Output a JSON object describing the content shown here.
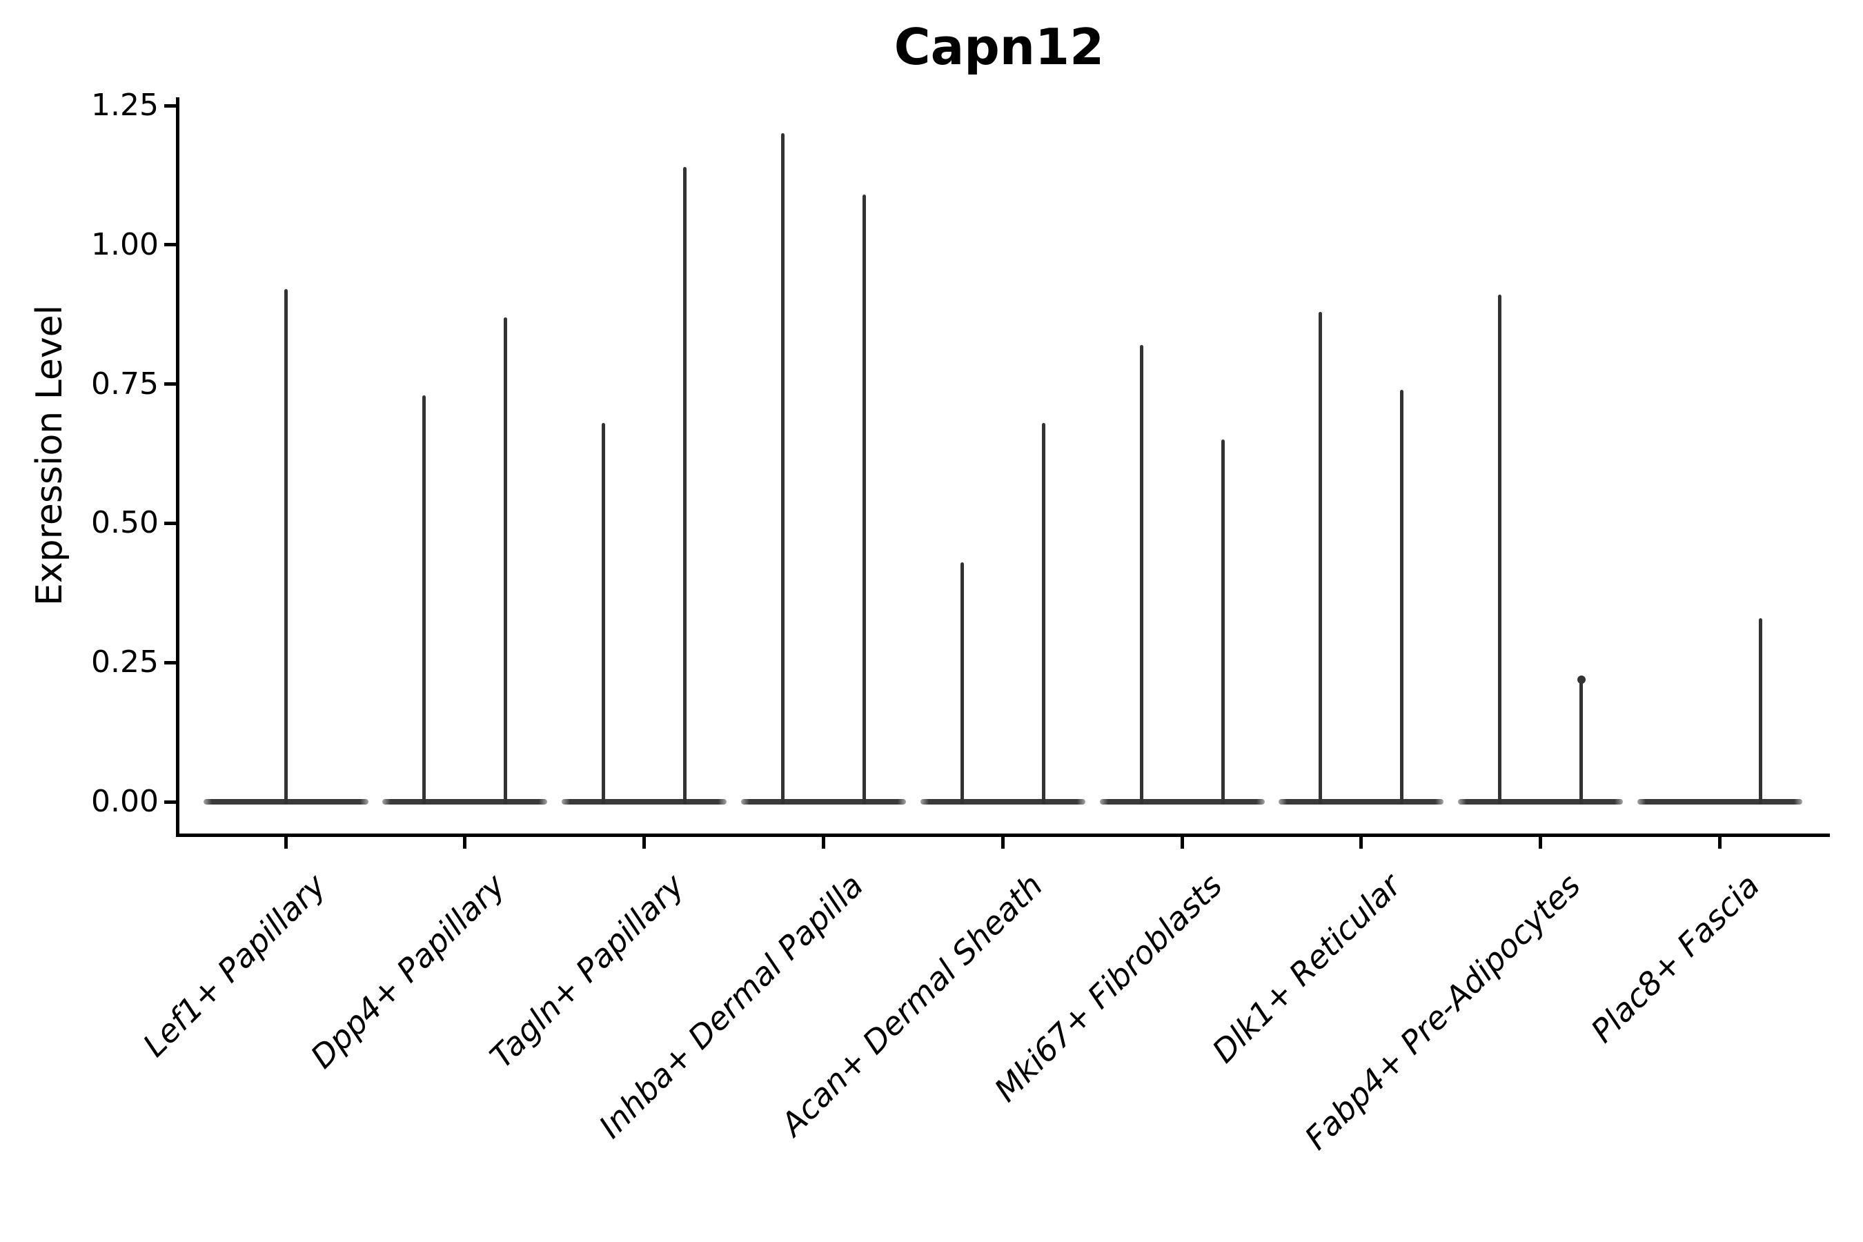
{
  "chart_data": {
    "type": "violin",
    "title": "Capn12",
    "xlabel": "",
    "ylabel": "Expression Level",
    "ylim": [
      0,
      1.25
    ],
    "yticks": [
      "0.00",
      "0.25",
      "0.50",
      "0.75",
      "1.00",
      "1.25"
    ],
    "grid": false,
    "legend": "none",
    "description": "Violin plot of gene expression; distributions are concentrated at zero (flat bodies) with thin spikes reaching the maximum expression per group; most cell types contain two side-by-side violins",
    "colors": {
      "violin": "#333333",
      "axis": "#000000",
      "text": "#000000"
    },
    "categories": [
      {
        "label": "Lef1+ Papillary",
        "violins": [
          {
            "pos": "center",
            "max": 0.92
          }
        ]
      },
      {
        "label": "Dpp4+ Papillary",
        "violins": [
          {
            "pos": "left",
            "max": 0.73
          },
          {
            "pos": "right",
            "max": 0.87
          }
        ]
      },
      {
        "label": "Tagln+ Papillary",
        "violins": [
          {
            "pos": "left",
            "max": 0.68
          },
          {
            "pos": "right",
            "max": 1.14
          }
        ]
      },
      {
        "label": "Inhba+ Dermal Papilla",
        "violins": [
          {
            "pos": "left",
            "max": 1.2
          },
          {
            "pos": "right",
            "max": 1.09
          }
        ]
      },
      {
        "label": "Acan+ Dermal Sheath",
        "violins": [
          {
            "pos": "left",
            "max": 0.43
          },
          {
            "pos": "right",
            "max": 0.68
          }
        ]
      },
      {
        "label": "Mki67+ Fibroblasts",
        "violins": [
          {
            "pos": "left",
            "max": 0.82
          },
          {
            "pos": "right",
            "max": 0.65
          }
        ]
      },
      {
        "label": "Dlk1+ Reticular",
        "violins": [
          {
            "pos": "left",
            "max": 0.88
          },
          {
            "pos": "right",
            "max": 0.74
          }
        ]
      },
      {
        "label": "Fabp4+ Pre-Adipocytes",
        "violins": [
          {
            "pos": "left",
            "max": 0.91
          },
          {
            "pos": "right",
            "max": 0.22,
            "dot": true
          }
        ]
      },
      {
        "label": "Plac8+ Fascia",
        "violins": [
          {
            "pos": "right",
            "max": 0.33
          }
        ]
      }
    ]
  }
}
